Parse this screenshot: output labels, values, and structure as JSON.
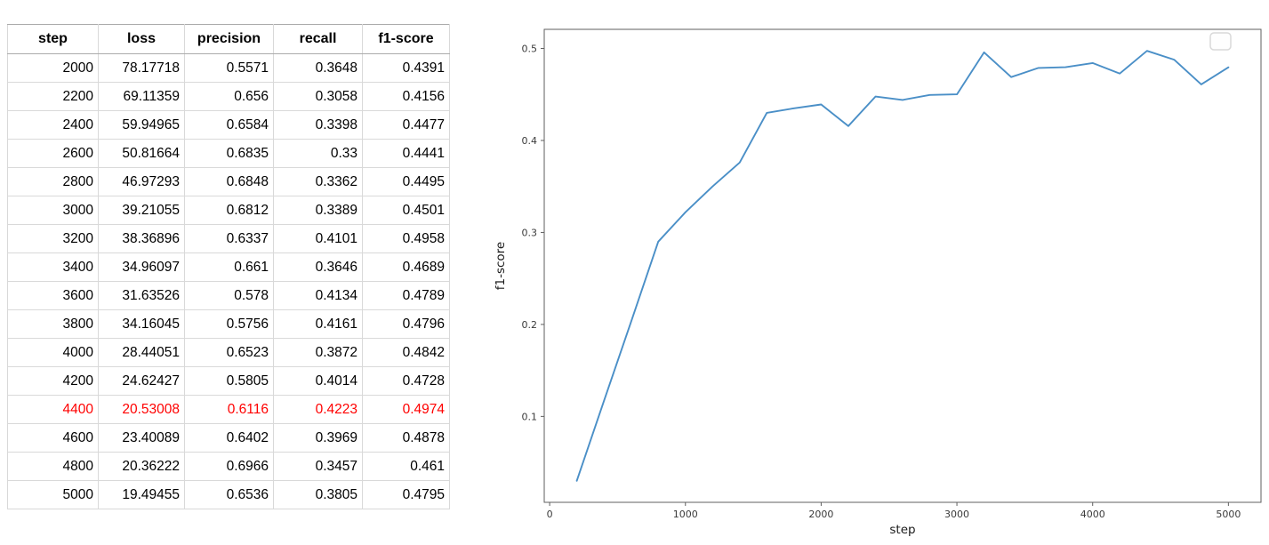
{
  "table": {
    "columns": [
      "step",
      "loss",
      "precision",
      "recall",
      "f1-score"
    ],
    "rows": [
      [
        "2000",
        "78.17718",
        "0.5571",
        "0.3648",
        "0.4391"
      ],
      [
        "2200",
        "69.11359",
        "0.656",
        "0.3058",
        "0.4156"
      ],
      [
        "2400",
        "59.94965",
        "0.6584",
        "0.3398",
        "0.4477"
      ],
      [
        "2600",
        "50.81664",
        "0.6835",
        "0.33",
        "0.4441"
      ],
      [
        "2800",
        "46.97293",
        "0.6848",
        "0.3362",
        "0.4495"
      ],
      [
        "3000",
        "39.21055",
        "0.6812",
        "0.3389",
        "0.4501"
      ],
      [
        "3200",
        "38.36896",
        "0.6337",
        "0.4101",
        "0.4958"
      ],
      [
        "3400",
        "34.96097",
        "0.661",
        "0.3646",
        "0.4689"
      ],
      [
        "3600",
        "31.63526",
        "0.578",
        "0.4134",
        "0.4789"
      ],
      [
        "3800",
        "34.16045",
        "0.5756",
        "0.4161",
        "0.4796"
      ],
      [
        "4000",
        "28.44051",
        "0.6523",
        "0.3872",
        "0.4842"
      ],
      [
        "4200",
        "24.62427",
        "0.5805",
        "0.4014",
        "0.4728"
      ],
      [
        "4400",
        "20.53008",
        "0.6116",
        "0.4223",
        "0.4974"
      ],
      [
        "4600",
        "23.40089",
        "0.6402",
        "0.3969",
        "0.4878"
      ],
      [
        "4800",
        "20.36222",
        "0.6966",
        "0.3457",
        "0.461"
      ],
      [
        "5000",
        "19.49455",
        "0.6536",
        "0.3805",
        "0.4795"
      ]
    ],
    "highlight_step": "4400",
    "highlight_color": "#ff0000",
    "text_color": "#000000"
  },
  "chart_data": {
    "type": "line",
    "title": "",
    "xlabel": "step",
    "ylabel": "f1-score",
    "x": [
      200,
      400,
      600,
      800,
      1000,
      1200,
      1400,
      1600,
      1800,
      2000,
      2200,
      2400,
      2600,
      2800,
      3000,
      3200,
      3400,
      3600,
      3800,
      4000,
      4200,
      4400,
      4600,
      4800,
      5000
    ],
    "y": [
      0.03,
      0.117,
      0.203,
      0.29,
      0.322,
      0.35,
      0.376,
      0.43,
      0.435,
      0.4391,
      0.4156,
      0.4477,
      0.4441,
      0.4495,
      0.4501,
      0.4958,
      0.4689,
      0.4789,
      0.4796,
      0.4842,
      0.4728,
      0.4974,
      0.4878,
      0.461,
      0.4795
    ],
    "x_ticks": [
      0,
      1000,
      2000,
      3000,
      4000,
      5000
    ],
    "y_ticks": [
      0.1,
      0.2,
      0.3,
      0.4,
      0.5
    ],
    "xlim": [
      -40,
      5240
    ],
    "ylim": [
      0.0066,
      0.5208
    ],
    "grid": false,
    "legend": "empty box, top-right",
    "line_color": "#4a8fc7",
    "spine_color": "#5f5f5f",
    "legend_box_color": "#d9d9d9"
  }
}
